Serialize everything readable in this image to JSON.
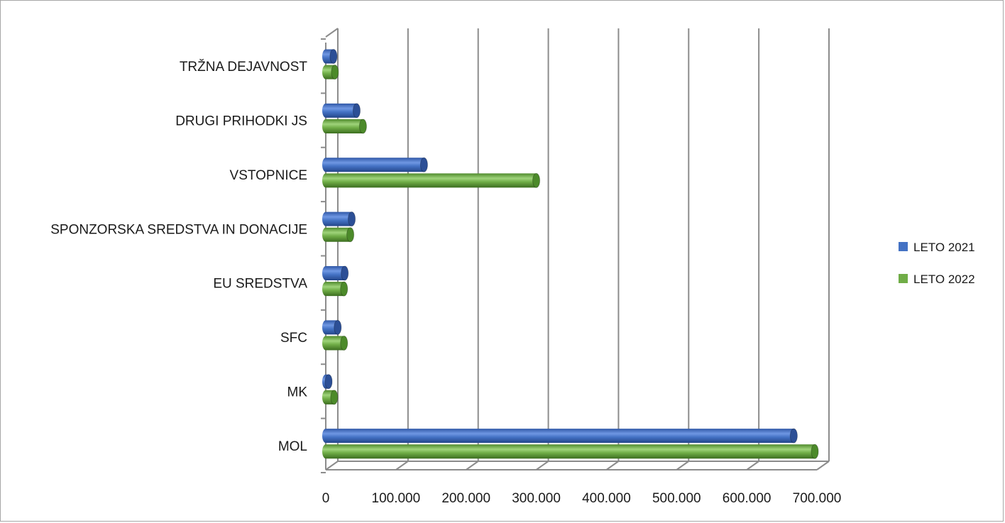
{
  "chart_data": {
    "type": "bar",
    "orientation": "horizontal",
    "style": "3d-cylinder",
    "title": "",
    "xlabel": "",
    "ylabel": "",
    "categories": [
      "MOL",
      "MK",
      "SFC",
      "EU SREDSTVA",
      "SPONZORSKA SREDSTVA IN DONACIJE",
      "VSTOPNICE",
      "DRUGI PRIHODKI JS",
      "TRŽNA DEJAVNOST"
    ],
    "series": [
      {
        "name": "LETO 2021",
        "color": "#4472C4",
        "values": [
          667000,
          1000,
          17000,
          27000,
          37000,
          140000,
          44000,
          11000
        ]
      },
      {
        "name": "LETO 2022",
        "color": "#70AD47",
        "values": [
          697000,
          12000,
          26000,
          26000,
          35000,
          300000,
          53000,
          13000
        ]
      }
    ],
    "xlim": [
      0,
      700000
    ],
    "xticks": [
      0,
      100000,
      200000,
      300000,
      400000,
      500000,
      600000,
      700000
    ],
    "xtick_labels": [
      "0",
      "100.000",
      "200.000",
      "300.000",
      "400.000",
      "500.000",
      "600.000",
      "700.000"
    ],
    "grid": "vertical major gridlines",
    "legend_position": "right"
  }
}
